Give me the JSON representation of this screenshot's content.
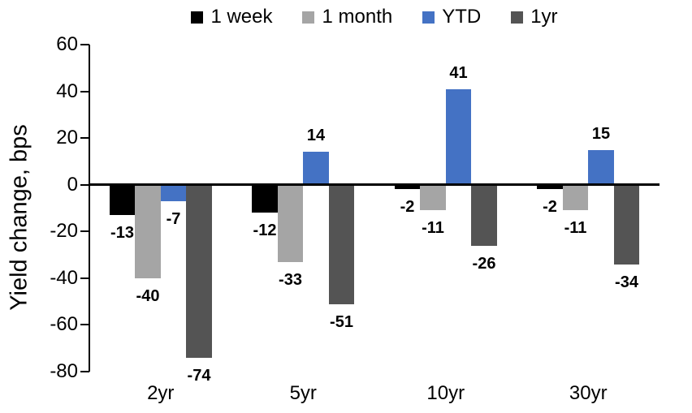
{
  "chart_data": {
    "type": "bar",
    "title": "",
    "ylabel": "Yield change, bps",
    "categories": [
      "2yr",
      "5yr",
      "10yr",
      "30yr"
    ],
    "series": [
      {
        "name": "1 week",
        "color": "#000000",
        "values": [
          -13,
          -12,
          -2,
          -2
        ]
      },
      {
        "name": "1 month",
        "color": "#A5A5A5",
        "values": [
          -40,
          -33,
          -11,
          -11
        ]
      },
      {
        "name": "YTD",
        "color": "#4472C4",
        "values": [
          -7,
          14,
          41,
          15
        ]
      },
      {
        "name": "1yr",
        "color": "#545454",
        "values": [
          -74,
          -51,
          -26,
          -34
        ]
      }
    ],
    "ylim": [
      -80,
      60
    ],
    "yticks": [
      60,
      40,
      20,
      0,
      -20,
      -40,
      -60,
      -80
    ],
    "ytick_step": 20,
    "grid": false,
    "legend_position": "top",
    "data_labels": true,
    "axis_color": "#000000"
  }
}
